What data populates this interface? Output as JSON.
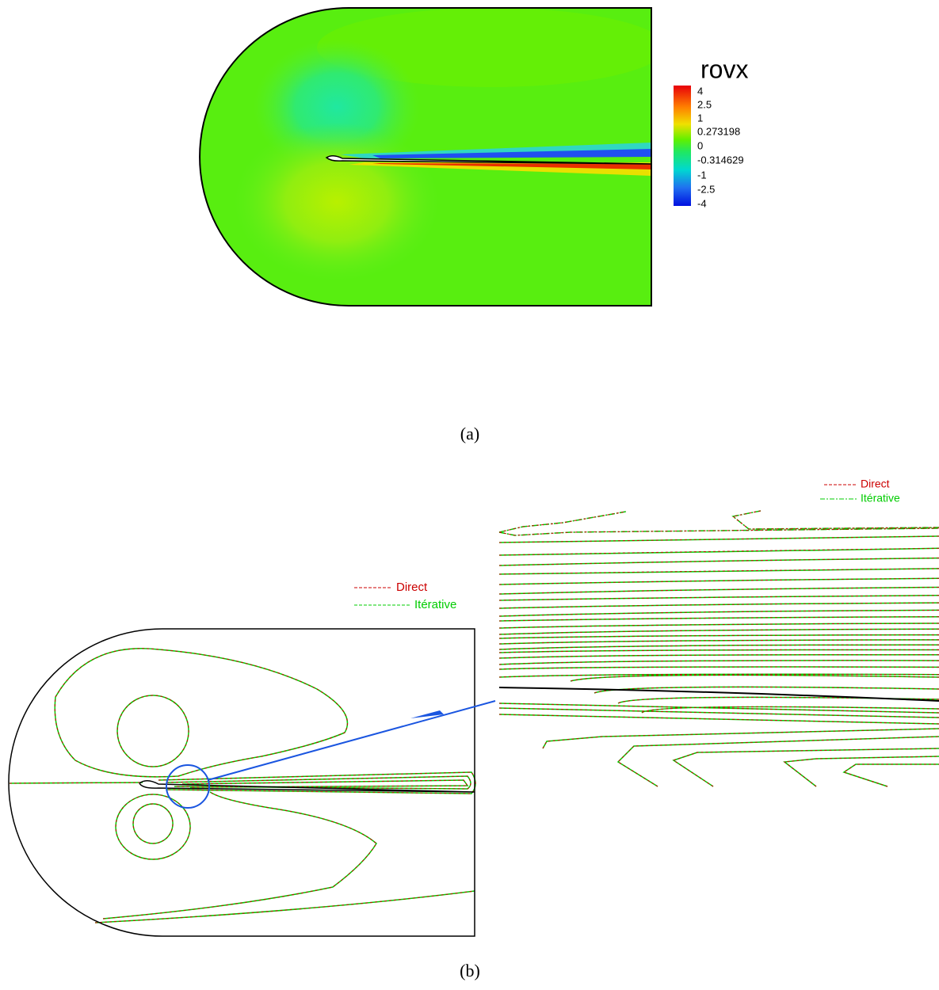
{
  "panel_a": {
    "colorbar_title": "rovx",
    "colorbar_labels": [
      "4",
      "2.5",
      "1",
      "0.273198",
      "0",
      "-0.314629",
      "-1",
      "-2.5",
      "-4"
    ],
    "caption": "(a)"
  },
  "panel_b": {
    "legend": [
      "Direct",
      "Itérative"
    ],
    "zoom_legend": [
      "Direct",
      "Itérative"
    ],
    "caption": "(b)"
  }
}
